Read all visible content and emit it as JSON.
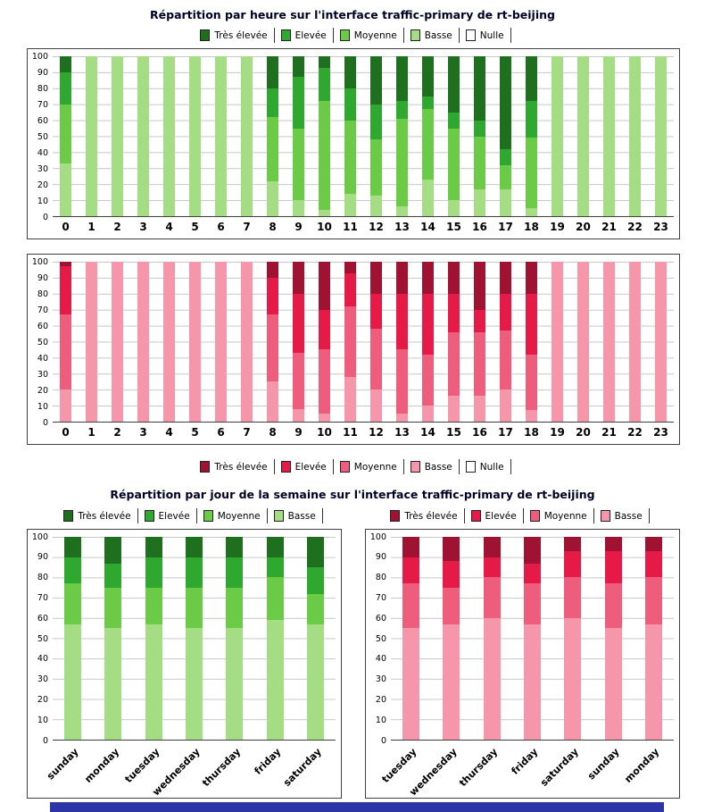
{
  "titles": {
    "hourly": "Répartition par heure sur l'interface traffic-primary de rt-beijing",
    "daily": "Répartition par jour de la semaine sur l'interface traffic-primary de rt-beijing"
  },
  "palettes": {
    "green": {
      "tres_elevee": "#1e701e",
      "elevee": "#2fa82f",
      "moyenne": "#6bcb47",
      "basse": "#a5dd84",
      "nulle": "#ffffff"
    },
    "red": {
      "tres_elevee": "#a01232",
      "elevee": "#e51a47",
      "moyenne": "#ef5d7d",
      "basse": "#f596ab",
      "nulle": "#ffffff"
    }
  },
  "decorations": {
    "bottom_strip_color": "#2b35a5",
    "grid_color": "#c8c8c8"
  },
  "legends": {
    "hourly_green": {
      "palette": "green",
      "items": [
        {
          "key": "tres_elevee",
          "label": "Très élevée"
        },
        {
          "key": "elevee",
          "label": "Elevée"
        },
        {
          "key": "moyenne",
          "label": "Moyenne"
        },
        {
          "key": "basse",
          "label": "Basse"
        },
        {
          "key": "nulle",
          "label": "Nulle"
        }
      ]
    },
    "hourly_red": {
      "palette": "red",
      "items": [
        {
          "key": "tres_elevee",
          "label": "Très élevée"
        },
        {
          "key": "elevee",
          "label": "Elevée"
        },
        {
          "key": "moyenne",
          "label": "Moyenne"
        },
        {
          "key": "basse",
          "label": "Basse"
        },
        {
          "key": "nulle",
          "label": "Nulle"
        }
      ]
    },
    "daily_green": {
      "palette": "green",
      "items": [
        {
          "key": "tres_elevee",
          "label": "Très élevée"
        },
        {
          "key": "elevee",
          "label": "Elevée"
        },
        {
          "key": "moyenne",
          "label": "Moyenne"
        },
        {
          "key": "basse",
          "label": "Basse"
        }
      ]
    },
    "daily_red": {
      "palette": "red",
      "items": [
        {
          "key": "tres_elevee",
          "label": "Très élevée"
        },
        {
          "key": "elevee",
          "label": "Elevée"
        },
        {
          "key": "moyenne",
          "label": "Moyenne"
        },
        {
          "key": "basse",
          "label": "Basse"
        }
      ]
    }
  },
  "chart_data": [
    {
      "id": "hourly-green",
      "type": "bar",
      "stacked": true,
      "units": "percent",
      "palette": "green",
      "title": "Répartition par heure sur l'interface traffic-primary de rt-beijing",
      "xlabel": "",
      "ylabel": "",
      "ylim": [
        0,
        100
      ],
      "yticks": [
        0,
        10,
        20,
        30,
        40,
        50,
        60,
        70,
        80,
        90,
        100
      ],
      "grid": true,
      "legend_position": "top",
      "categories": [
        "0",
        "1",
        "2",
        "3",
        "4",
        "5",
        "6",
        "7",
        "8",
        "9",
        "10",
        "11",
        "12",
        "13",
        "14",
        "15",
        "16",
        "17",
        "18",
        "19",
        "20",
        "21",
        "22",
        "23"
      ],
      "series": [
        {
          "name": "Basse",
          "key": "basse",
          "values": [
            33,
            100,
            100,
            100,
            100,
            100,
            100,
            100,
            22,
            10,
            4,
            14,
            13,
            6,
            23,
            10,
            17,
            17,
            5,
            100,
            100,
            100,
            100,
            100
          ]
        },
        {
          "name": "Moyenne",
          "key": "moyenne",
          "values": [
            37,
            0,
            0,
            0,
            0,
            0,
            0,
            0,
            40,
            45,
            68,
            46,
            35,
            55,
            44,
            45,
            33,
            15,
            44,
            0,
            0,
            0,
            0,
            0
          ]
        },
        {
          "name": "Elevée",
          "key": "elevee",
          "values": [
            20,
            0,
            0,
            0,
            0,
            0,
            0,
            0,
            18,
            32,
            21,
            20,
            22,
            11,
            8,
            10,
            10,
            10,
            23,
            0,
            0,
            0,
            0,
            0
          ]
        },
        {
          "name": "Très élevée",
          "key": "tres_elevee",
          "values": [
            10,
            0,
            0,
            0,
            0,
            0,
            0,
            0,
            20,
            13,
            7,
            20,
            30,
            28,
            25,
            35,
            40,
            58,
            28,
            0,
            0,
            0,
            0,
            0
          ]
        },
        {
          "name": "Nulle",
          "key": "nulle",
          "values": [
            0,
            0,
            0,
            0,
            0,
            0,
            0,
            0,
            0,
            0,
            0,
            0,
            0,
            0,
            0,
            0,
            0,
            0,
            0,
            0,
            0,
            0,
            0,
            0
          ]
        }
      ]
    },
    {
      "id": "hourly-red",
      "type": "bar",
      "stacked": true,
      "units": "percent",
      "palette": "red",
      "title": "Répartition par heure sur l'interface traffic-primary de rt-beijing",
      "xlabel": "",
      "ylabel": "",
      "ylim": [
        0,
        100
      ],
      "yticks": [
        0,
        10,
        20,
        30,
        40,
        50,
        60,
        70,
        80,
        90,
        100
      ],
      "grid": true,
      "legend_position": "bottom",
      "categories": [
        "0",
        "1",
        "2",
        "3",
        "4",
        "5",
        "6",
        "7",
        "8",
        "9",
        "10",
        "11",
        "12",
        "13",
        "14",
        "15",
        "16",
        "17",
        "18",
        "19",
        "20",
        "21",
        "22",
        "23"
      ],
      "series": [
        {
          "name": "Basse",
          "key": "basse",
          "values": [
            20,
            100,
            100,
            100,
            100,
            100,
            100,
            100,
            25,
            8,
            5,
            28,
            20,
            5,
            10,
            16,
            16,
            20,
            7,
            100,
            100,
            100,
            100,
            100
          ]
        },
        {
          "name": "Moyenne",
          "key": "moyenne",
          "values": [
            47,
            0,
            0,
            0,
            0,
            0,
            0,
            0,
            42,
            35,
            40,
            44,
            38,
            40,
            32,
            40,
            40,
            37,
            35,
            0,
            0,
            0,
            0,
            0
          ]
        },
        {
          "name": "Elevée",
          "key": "elevee",
          "values": [
            30,
            0,
            0,
            0,
            0,
            0,
            0,
            0,
            23,
            37,
            25,
            21,
            22,
            35,
            38,
            24,
            14,
            23,
            38,
            0,
            0,
            0,
            0,
            0
          ]
        },
        {
          "name": "Très élevée",
          "key": "tres_elevee",
          "values": [
            3,
            0,
            0,
            0,
            0,
            0,
            0,
            0,
            10,
            20,
            30,
            7,
            20,
            20,
            20,
            20,
            30,
            20,
            20,
            0,
            0,
            0,
            0,
            0
          ]
        },
        {
          "name": "Nulle",
          "key": "nulle",
          "values": [
            0,
            0,
            0,
            0,
            0,
            0,
            0,
            0,
            0,
            0,
            0,
            0,
            0,
            0,
            0,
            0,
            0,
            0,
            0,
            0,
            0,
            0,
            0,
            0
          ]
        }
      ]
    },
    {
      "id": "daily-green",
      "type": "bar",
      "stacked": true,
      "units": "percent",
      "palette": "green",
      "title": "Répartition par jour de la semaine sur l'interface traffic-primary de rt-beijing",
      "xlabel": "",
      "ylabel": "",
      "ylim": [
        0,
        100
      ],
      "yticks": [
        0,
        10,
        20,
        30,
        40,
        50,
        60,
        70,
        80,
        90,
        100
      ],
      "grid": true,
      "legend_position": "top",
      "categories": [
        "sunday",
        "monday",
        "tuesday",
        "wednesday",
        "thursday",
        "friday",
        "saturday"
      ],
      "series": [
        {
          "name": "Basse",
          "key": "basse",
          "values": [
            57,
            55,
            57,
            55,
            55,
            59,
            57
          ]
        },
        {
          "name": "Moyenne",
          "key": "moyenne",
          "values": [
            20,
            20,
            18,
            20,
            20,
            21,
            15
          ]
        },
        {
          "name": "Elevée",
          "key": "elevee",
          "values": [
            13,
            12,
            15,
            15,
            15,
            10,
            13
          ]
        },
        {
          "name": "Très élevée",
          "key": "tres_elevee",
          "values": [
            10,
            13,
            10,
            10,
            10,
            10,
            15
          ]
        }
      ]
    },
    {
      "id": "daily-red",
      "type": "bar",
      "stacked": true,
      "units": "percent",
      "palette": "red",
      "title": "Répartition par jour de la semaine sur l'interface traffic-primary de rt-beijing",
      "xlabel": "",
      "ylabel": "",
      "ylim": [
        0,
        100
      ],
      "yticks": [
        0,
        10,
        20,
        30,
        40,
        50,
        60,
        70,
        80,
        90,
        100
      ],
      "grid": true,
      "legend_position": "top",
      "categories": [
        "tuesday",
        "wednesday",
        "thursday",
        "friday",
        "saturday",
        "sunday",
        "monday"
      ],
      "series": [
        {
          "name": "Basse",
          "key": "basse",
          "values": [
            55,
            57,
            60,
            57,
            60,
            55,
            57
          ]
        },
        {
          "name": "Moyenne",
          "key": "moyenne",
          "values": [
            22,
            18,
            20,
            20,
            20,
            22,
            23
          ]
        },
        {
          "name": "Elevée",
          "key": "elevee",
          "values": [
            13,
            13,
            10,
            10,
            13,
            16,
            13
          ]
        },
        {
          "name": "Très élevée",
          "key": "tres_elevee",
          "values": [
            10,
            12,
            10,
            13,
            7,
            7,
            7
          ]
        }
      ]
    }
  ]
}
